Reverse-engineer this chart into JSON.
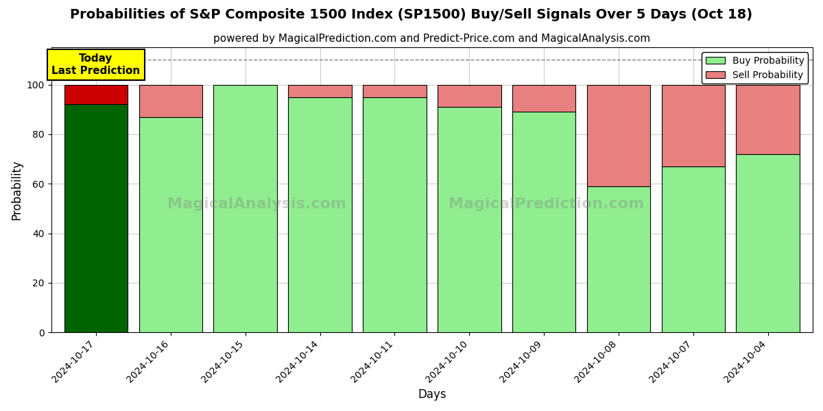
{
  "title": "Probabilities of S&P Composite 1500 Index (SP1500) Buy/Sell Signals Over 5 Days (Oct 18)",
  "subtitle": "powered by MagicalPrediction.com and Predict-Price.com and MagicalAnalysis.com",
  "xlabel": "Days",
  "ylabel": "Probability",
  "dates": [
    "2024-10-17",
    "2024-10-16",
    "2024-10-15",
    "2024-10-14",
    "2024-10-11",
    "2024-10-10",
    "2024-10-09",
    "2024-10-08",
    "2024-10-07",
    "2024-10-04"
  ],
  "buy_values": [
    92,
    87,
    100,
    95,
    95,
    91,
    89,
    59,
    67,
    72
  ],
  "sell_values": [
    8,
    13,
    0,
    5,
    5,
    9,
    11,
    41,
    33,
    28
  ],
  "today_buy_color": "#006400",
  "today_sell_color": "#cc0000",
  "buy_color": "#90EE90",
  "sell_color": "#E88080",
  "bar_edge_color": "black",
  "ylim": [
    0,
    115
  ],
  "yticks": [
    0,
    20,
    40,
    60,
    80,
    100
  ],
  "dashed_line_y": 110,
  "legend_buy_label": "Buy Probability",
  "legend_sell_label": "Sell Probability",
  "today_label_line1": "Today",
  "today_label_line2": "Last Prediction",
  "today_box_color": "#FFFF00",
  "watermark1": "MagicalAnalysis.com",
  "watermark2": "MagicalPrediction.com",
  "plot_bg_color": "#f5f5f0",
  "background_color": "#ffffff",
  "grid_color": "#cccccc",
  "title_fontsize": 14,
  "subtitle_fontsize": 11,
  "axis_label_fontsize": 12,
  "tick_fontsize": 10
}
